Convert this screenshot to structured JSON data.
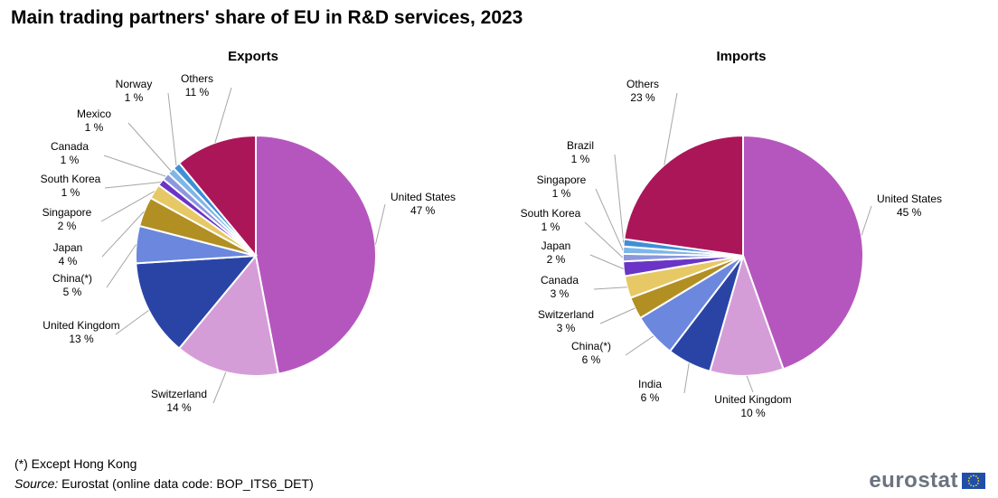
{
  "title": "Main trading partners' share of EU in R&D services, 2023",
  "footer": {
    "note": "(*) Except Hong Kong",
    "source_label": "Source:",
    "source_text": " Eurostat (online data code: BOP_ITS6_DET)",
    "logo": "eurostat"
  },
  "chart_data": [
    {
      "type": "pie",
      "title": "Exports",
      "unit": "%",
      "slices": [
        {
          "label": "United States",
          "value": 47,
          "color": "#b556be"
        },
        {
          "label": "Switzerland",
          "value": 14,
          "color": "#d59dd8"
        },
        {
          "label": "United Kingdom",
          "value": 13,
          "color": "#2a44a6"
        },
        {
          "label": "China(*)",
          "value": 5,
          "color": "#6b87de"
        },
        {
          "label": "Japan",
          "value": 4,
          "color": "#b28f22"
        },
        {
          "label": "Singapore",
          "value": 2,
          "color": "#e6c965"
        },
        {
          "label": "South Korea",
          "value": 1,
          "color": "#6a34c7"
        },
        {
          "label": "Canada",
          "value": 1,
          "color": "#8c97dc"
        },
        {
          "label": "Mexico",
          "value": 1,
          "color": "#7fb6e8"
        },
        {
          "label": "Norway",
          "value": 1,
          "color": "#3f8fd6"
        },
        {
          "label": "Others",
          "value": 11,
          "color": "#ab1659"
        }
      ]
    },
    {
      "type": "pie",
      "title": "Imports",
      "unit": "%",
      "slices": [
        {
          "label": "United States",
          "value": 45,
          "color": "#b556be"
        },
        {
          "label": "United Kingdom",
          "value": 10,
          "color": "#d59dd8"
        },
        {
          "label": "India",
          "value": 6,
          "color": "#2a44a6"
        },
        {
          "label": "China(*)",
          "value": 6,
          "color": "#6b87de"
        },
        {
          "label": "Switzerland",
          "value": 3,
          "color": "#b28f22"
        },
        {
          "label": "Canada",
          "value": 3,
          "color": "#e6c965"
        },
        {
          "label": "Japan",
          "value": 2,
          "color": "#6a34c7"
        },
        {
          "label": "South Korea",
          "value": 1,
          "color": "#8c97dc"
        },
        {
          "label": "Singapore",
          "value": 1,
          "color": "#7fb6e8"
        },
        {
          "label": "Brazil",
          "value": 1,
          "color": "#3f8fd6"
        },
        {
          "label": "Others",
          "value": 23,
          "color": "#ab1659"
        }
      ]
    }
  ]
}
